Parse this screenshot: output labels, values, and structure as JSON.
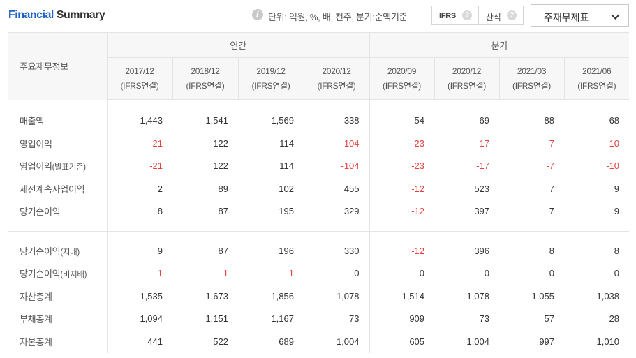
{
  "header": {
    "title_part1": "Financial",
    "title_part2": "Summary",
    "info_icon": "info-icon",
    "unit_text": "단위: 억원, %, 배, 천주, 분기:순액기준",
    "ifrs_label": "IFRS",
    "calc_label": "산식",
    "help_icon": "question-icon",
    "select_value": "주재무제표"
  },
  "table": {
    "corner_label": "주요재무정보",
    "annual_label": "연간",
    "quarter_label": "분기",
    "periods": [
      {
        "date": "2017/12",
        "basis": "(IFRS연결)"
      },
      {
        "date": "2018/12",
        "basis": "(IFRS연결)"
      },
      {
        "date": "2019/12",
        "basis": "(IFRS연결)"
      },
      {
        "date": "2020/12",
        "basis": "(IFRS연결)"
      },
      {
        "date": "2020/09",
        "basis": "(IFRS연결)"
      },
      {
        "date": "2020/12",
        "basis": "(IFRS연결)"
      },
      {
        "date": "2021/03",
        "basis": "(IFRS연결)"
      },
      {
        "date": "2021/06",
        "basis": "(IFRS연결)"
      }
    ],
    "rows_top": [
      {
        "label": "매출액",
        "suffix": "",
        "values": [
          "1,443",
          "1,541",
          "1,569",
          "338",
          "54",
          "69",
          "88",
          "68"
        ]
      },
      {
        "label": "영업이익",
        "suffix": "",
        "values": [
          "-21",
          "122",
          "114",
          "-104",
          "-23",
          "-17",
          "-7",
          "-10"
        ]
      },
      {
        "label": "영업이익",
        "suffix": "(발표기준)",
        "values": [
          "-21",
          "122",
          "114",
          "-104",
          "-23",
          "-17",
          "-7",
          "-10"
        ]
      },
      {
        "label": "세전계속사업이익",
        "suffix": "",
        "values": [
          "2",
          "89",
          "102",
          "455",
          "-12",
          "523",
          "7",
          "9"
        ]
      },
      {
        "label": "당기순이익",
        "suffix": "",
        "values": [
          "8",
          "87",
          "195",
          "329",
          "-12",
          "397",
          "7",
          "9"
        ]
      }
    ],
    "rows_bottom": [
      {
        "label": "당기순이익",
        "suffix": "(지배)",
        "values": [
          "9",
          "87",
          "196",
          "330",
          "-12",
          "396",
          "8",
          "8"
        ]
      },
      {
        "label": "당기순이익",
        "suffix": "(비지배)",
        "values": [
          "-1",
          "-1",
          "-1",
          "0",
          "0",
          "0",
          "0",
          "0"
        ]
      },
      {
        "label": "자산총계",
        "suffix": "",
        "values": [
          "1,535",
          "1,673",
          "1,856",
          "1,078",
          "1,514",
          "1,078",
          "1,055",
          "1,038"
        ]
      },
      {
        "label": "부채총계",
        "suffix": "",
        "values": [
          "1,094",
          "1,151",
          "1,167",
          "73",
          "909",
          "73",
          "57",
          "28"
        ]
      },
      {
        "label": "자본총계",
        "suffix": "",
        "values": [
          "441",
          "522",
          "689",
          "1,004",
          "605",
          "1,004",
          "997",
          "1,010"
        ]
      }
    ]
  },
  "colors": {
    "title_accent": "#1e5fc8",
    "negative": "#e8413c",
    "header_bg": "#f7f7f7",
    "border": "#e4e4e4"
  }
}
